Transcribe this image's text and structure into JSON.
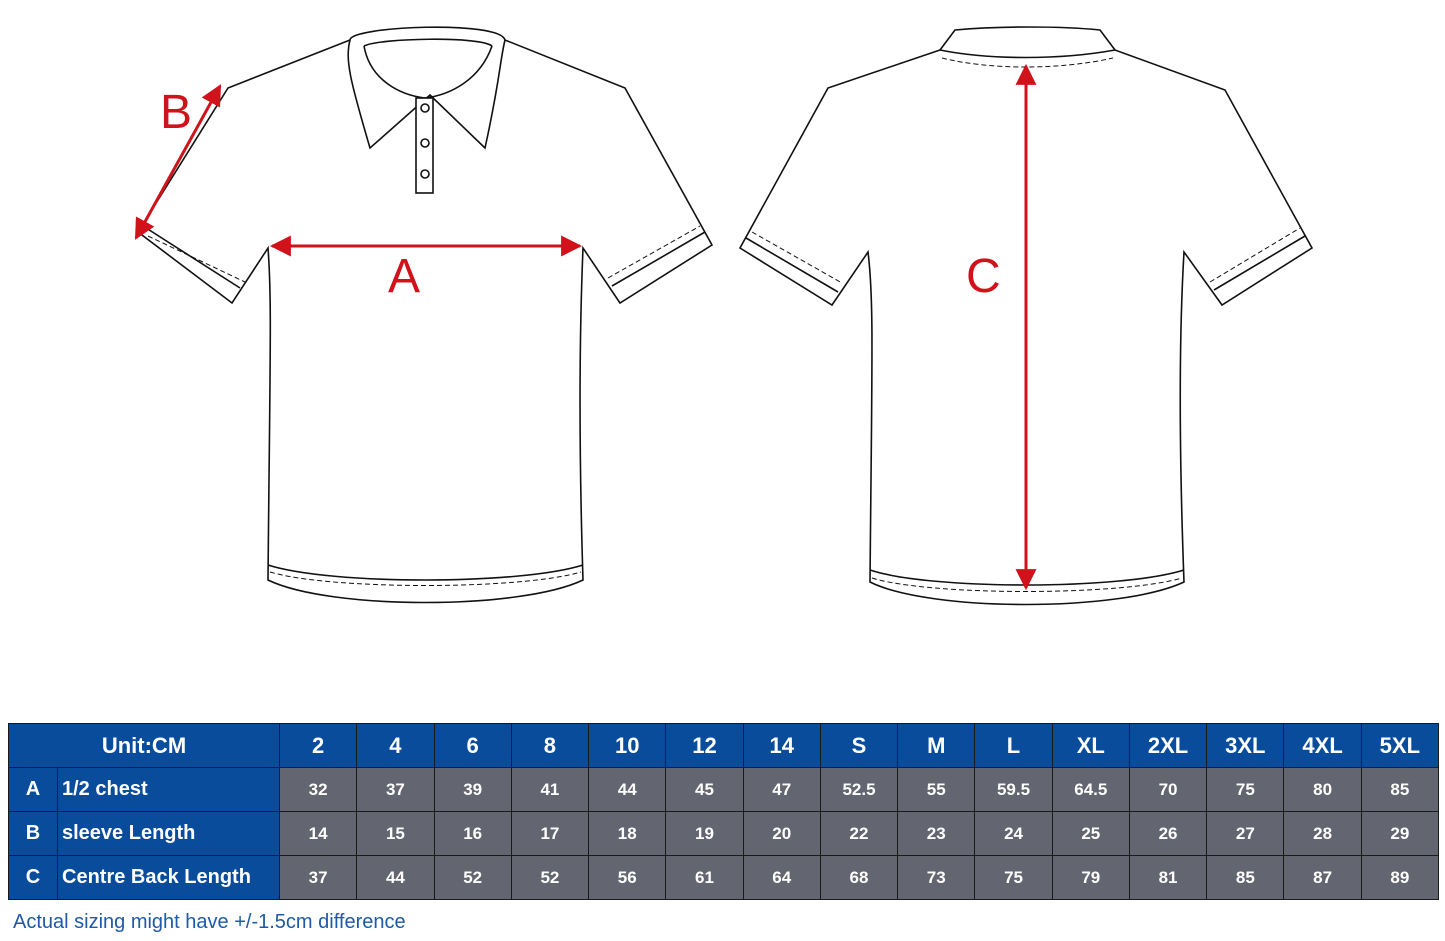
{
  "diagram": {
    "measure_labels": {
      "a": "A",
      "b": "B",
      "c": "C"
    },
    "colors": {
      "arrow": "#d0121b",
      "header": "#0a4c9c",
      "cell": "#636670",
      "note": "#1d5aa8"
    }
  },
  "table": {
    "unit_label": "Unit:CM",
    "sizes": [
      "2",
      "4",
      "6",
      "8",
      "10",
      "12",
      "14",
      "S",
      "M",
      "L",
      "XL",
      "2XL",
      "3XL",
      "4XL",
      "5XL"
    ],
    "rows": [
      {
        "letter": "A",
        "label": "1/2 chest",
        "values": [
          "32",
          "37",
          "39",
          "41",
          "44",
          "45",
          "47",
          "52.5",
          "55",
          "59.5",
          "64.5",
          "70",
          "75",
          "80",
          "85"
        ]
      },
      {
        "letter": "B",
        "label": "sleeve Length",
        "values": [
          "14",
          "15",
          "16",
          "17",
          "18",
          "19",
          "20",
          "22",
          "23",
          "24",
          "25",
          "26",
          "27",
          "28",
          "29"
        ]
      },
      {
        "letter": "C",
        "label": "Centre Back Length",
        "values": [
          "37",
          "44",
          "52",
          "52",
          "56",
          "61",
          "64",
          "68",
          "73",
          "75",
          "79",
          "81",
          "85",
          "87",
          "89"
        ]
      }
    ]
  },
  "note": "Actual sizing might have +/-1.5cm difference"
}
